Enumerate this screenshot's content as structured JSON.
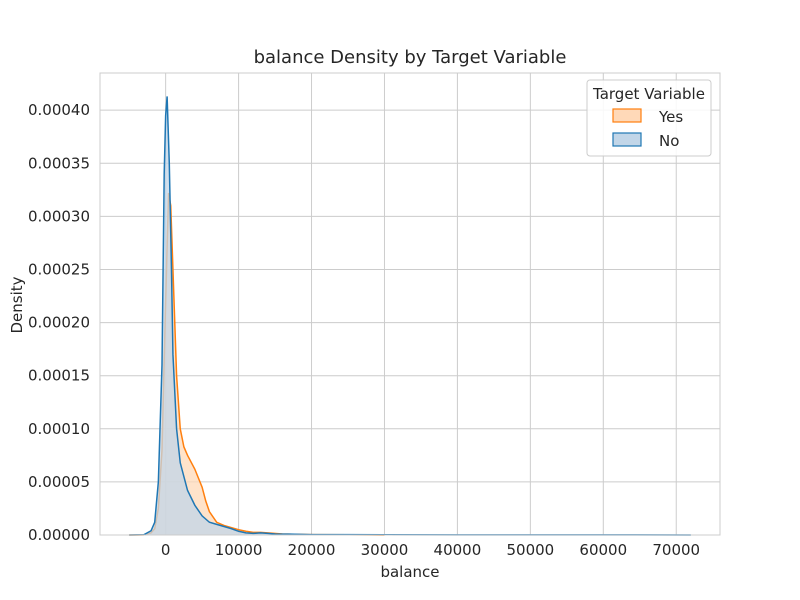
{
  "chart_data": {
    "type": "area",
    "title": "balance Density by Target Variable",
    "xlabel": "balance",
    "ylabel": "Density",
    "xlim": [
      -9000,
      76000
    ],
    "ylim": [
      0,
      0.000435
    ],
    "xticks": [
      0,
      10000,
      20000,
      30000,
      40000,
      50000,
      60000,
      70000
    ],
    "xtick_labels": [
      "0",
      "10000",
      "20000",
      "30000",
      "40000",
      "50000",
      "60000",
      "70000"
    ],
    "yticks": [
      0,
      5e-05,
      0.0001,
      0.00015,
      0.0002,
      0.00025,
      0.0003,
      0.00035,
      0.0004
    ],
    "ytick_labels": [
      "0.00000",
      "0.00005",
      "0.00010",
      "0.00015",
      "0.00020",
      "0.00025",
      "0.00030",
      "0.00035",
      "0.00040"
    ],
    "grid": true,
    "legend": {
      "title": "Target Variable",
      "position": "top-right"
    },
    "series": [
      {
        "name": "Yes",
        "color": "#ff7f0e",
        "fill": "#ffd9b8",
        "points": [
          [
            -5000,
            0
          ],
          [
            -3000,
            1e-07
          ],
          [
            -2000,
            2e-06
          ],
          [
            -1500,
            6e-06
          ],
          [
            -1000,
            2.5e-05
          ],
          [
            -500,
            8e-05
          ],
          [
            0,
            0.00022
          ],
          [
            400,
            0.000322
          ],
          [
            700,
            0.00031
          ],
          [
            1000,
            0.00025
          ],
          [
            1500,
            0.00015
          ],
          [
            2000,
            0.0001
          ],
          [
            2500,
            8.3e-05
          ],
          [
            3000,
            7.5e-05
          ],
          [
            4000,
            6.2e-05
          ],
          [
            5000,
            4.5e-05
          ],
          [
            5500,
            3.2e-05
          ],
          [
            6000,
            2.2e-05
          ],
          [
            7000,
            1.2e-05
          ],
          [
            8000,
            9e-06
          ],
          [
            9000,
            7e-06
          ],
          [
            10000,
            5e-06
          ],
          [
            11000,
            3.5e-06
          ],
          [
            12000,
            2.5e-06
          ],
          [
            13000,
            2.5e-06
          ],
          [
            14000,
            2e-06
          ],
          [
            16000,
            1e-06
          ],
          [
            18000,
            6e-07
          ],
          [
            20000,
            4e-07
          ],
          [
            25000,
            2e-07
          ],
          [
            28000,
            1e-07
          ],
          [
            30000,
            0
          ]
        ]
      },
      {
        "name": "No",
        "color": "#1f77b4",
        "fill": "#c2d6e8",
        "points": [
          [
            -5000,
            0
          ],
          [
            -3000,
            2e-07
          ],
          [
            -2000,
            4e-06
          ],
          [
            -1500,
            1.2e-05
          ],
          [
            -1000,
            5e-05
          ],
          [
            -500,
            0.00016
          ],
          [
            -200,
            0.00034
          ],
          [
            0,
            0.000395
          ],
          [
            200,
            0.000413
          ],
          [
            500,
            0.00035
          ],
          [
            800,
            0.00025
          ],
          [
            1000,
            0.00017
          ],
          [
            1500,
            0.0001
          ],
          [
            2000,
            6.8e-05
          ],
          [
            3000,
            4.2e-05
          ],
          [
            4000,
            2.8e-05
          ],
          [
            5000,
            1.8e-05
          ],
          [
            6000,
            1.2e-05
          ],
          [
            7000,
            1e-05
          ],
          [
            8000,
            8e-06
          ],
          [
            9000,
            6e-06
          ],
          [
            10000,
            3.5e-06
          ],
          [
            11000,
            2e-06
          ],
          [
            12000,
            1.5e-06
          ],
          [
            13000,
            2e-06
          ],
          [
            14000,
            1.5e-06
          ],
          [
            15000,
            1e-06
          ],
          [
            17000,
            8e-07
          ],
          [
            20000,
            4e-07
          ],
          [
            25000,
            3e-07
          ],
          [
            30000,
            2e-07
          ],
          [
            40000,
            1e-07
          ],
          [
            50000,
            1e-07
          ],
          [
            60000,
            1e-07
          ],
          [
            72000,
            0
          ]
        ]
      }
    ]
  }
}
